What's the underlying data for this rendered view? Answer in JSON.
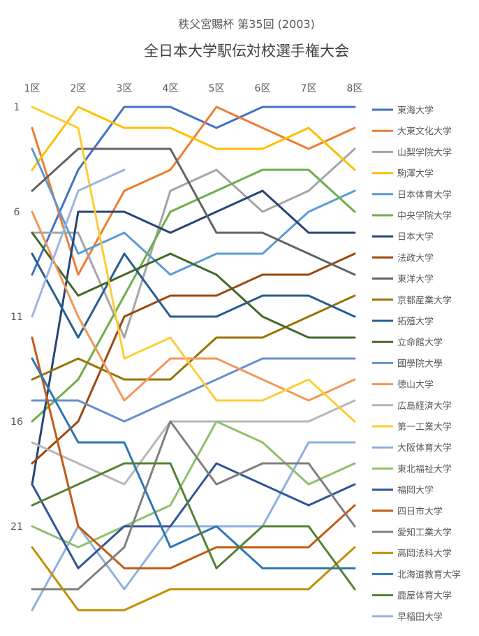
{
  "chart_data": {
    "type": "line",
    "title": "秩父宮賜杯 第35回 (2003)",
    "subtitle": "全日本大学駅伝対校選手権大会",
    "xlabel": "",
    "ylabel": "",
    "categories": [
      "1区",
      "2区",
      "3区",
      "4区",
      "5区",
      "6区",
      "7区",
      "8区"
    ],
    "y_ticks": [
      1,
      6,
      11,
      16,
      21
    ],
    "ylim": [
      1,
      25
    ],
    "y_inverted": true,
    "grid": false,
    "legend_position": "right",
    "series": [
      {
        "name": "東海大学",
        "color": "#4472C4",
        "values": [
          9,
          4,
          1,
          1,
          2,
          1,
          1,
          1
        ]
      },
      {
        "name": "大東文化大学",
        "color": "#ED7D31",
        "values": [
          2,
          9,
          5,
          4,
          1,
          2,
          3,
          2
        ]
      },
      {
        "name": "山梨学院大学",
        "color": "#A5A5A5",
        "values": [
          7,
          7,
          12,
          5,
          4,
          6,
          5,
          3
        ]
      },
      {
        "name": "駒澤大学",
        "color": "#FFC000",
        "values": [
          4,
          1,
          2,
          2,
          3,
          3,
          2,
          4
        ]
      },
      {
        "name": "日本体育大学",
        "color": "#5B9BD5",
        "values": [
          3,
          8,
          7,
          9,
          8,
          8,
          6,
          5
        ]
      },
      {
        "name": "中央学院大学",
        "color": "#70AD47",
        "values": [
          16,
          14,
          10,
          6,
          5,
          4,
          4,
          6
        ]
      },
      {
        "name": "日本大学",
        "color": "#264478",
        "values": [
          19,
          6,
          6,
          7,
          6,
          5,
          7,
          7
        ]
      },
      {
        "name": "法政大学",
        "color": "#9E480E",
        "values": [
          18,
          16,
          11,
          10,
          10,
          9,
          9,
          8
        ]
      },
      {
        "name": "東洋大学",
        "color": "#636363",
        "values": [
          5,
          3,
          3,
          3,
          7,
          7,
          8,
          9
        ]
      },
      {
        "name": "京都産業大学",
        "color": "#997300",
        "values": [
          14,
          13,
          14,
          14,
          12,
          12,
          11,
          10
        ]
      },
      {
        "name": "拓殖大学",
        "color": "#255E91",
        "values": [
          8,
          12,
          8,
          11,
          11,
          10,
          10,
          11
        ]
      },
      {
        "name": "立命館大学",
        "color": "#43682B",
        "values": [
          7,
          10,
          9,
          8,
          9,
          11,
          12,
          12
        ]
      },
      {
        "name": "國學院大學",
        "color": "#698ED0",
        "values": [
          15,
          15,
          16,
          15,
          14,
          13,
          13,
          13
        ]
      },
      {
        "name": "徳山大学",
        "color": "#F1975A",
        "values": [
          6,
          11,
          15,
          13,
          13,
          14,
          15,
          14
        ]
      },
      {
        "name": "広島経済大学",
        "color": "#B7B7B7",
        "values": [
          17,
          18,
          19,
          16,
          16,
          16,
          16,
          15
        ]
      },
      {
        "name": "第一工業大学",
        "color": "#FFCD33",
        "values": [
          1,
          2,
          13,
          12,
          15,
          15,
          14,
          16
        ]
      },
      {
        "name": "大阪体育大学",
        "color": "#8CB0DF",
        "values": [
          25,
          21,
          24,
          21,
          21,
          21,
          17,
          17
        ]
      },
      {
        "name": "東北福祉大学",
        "color": "#8FC16B",
        "values": [
          21,
          22,
          21,
          20,
          16,
          17,
          19,
          18
        ]
      },
      {
        "name": "福岡大学",
        "color": "#2F5597",
        "values": [
          19,
          23,
          21,
          21,
          18,
          19,
          20,
          19
        ]
      },
      {
        "name": "四日市大学",
        "color": "#C55A11",
        "values": [
          12,
          21,
          23,
          23,
          22,
          22,
          22,
          20
        ]
      },
      {
        "name": "愛知工業大学",
        "color": "#7F7F7F",
        "values": [
          24,
          24,
          22,
          16,
          19,
          18,
          18,
          21
        ]
      },
      {
        "name": "高岡法科大学",
        "color": "#C09000",
        "values": [
          22,
          25,
          25,
          24,
          24,
          24,
          24,
          22
        ]
      },
      {
        "name": "北海道教育大学",
        "color": "#2E75B6",
        "values": [
          13,
          17,
          17,
          22,
          21,
          23,
          23,
          23
        ]
      },
      {
        "name": "鹿屋体育大学",
        "color": "#548235",
        "values": [
          20,
          19,
          18,
          18,
          23,
          21,
          21,
          24
        ]
      },
      {
        "name": "早稲田大学",
        "color": "#9DB4E0",
        "values": [
          11,
          5,
          4,
          null,
          null,
          null,
          null,
          null
        ]
      }
    ]
  }
}
